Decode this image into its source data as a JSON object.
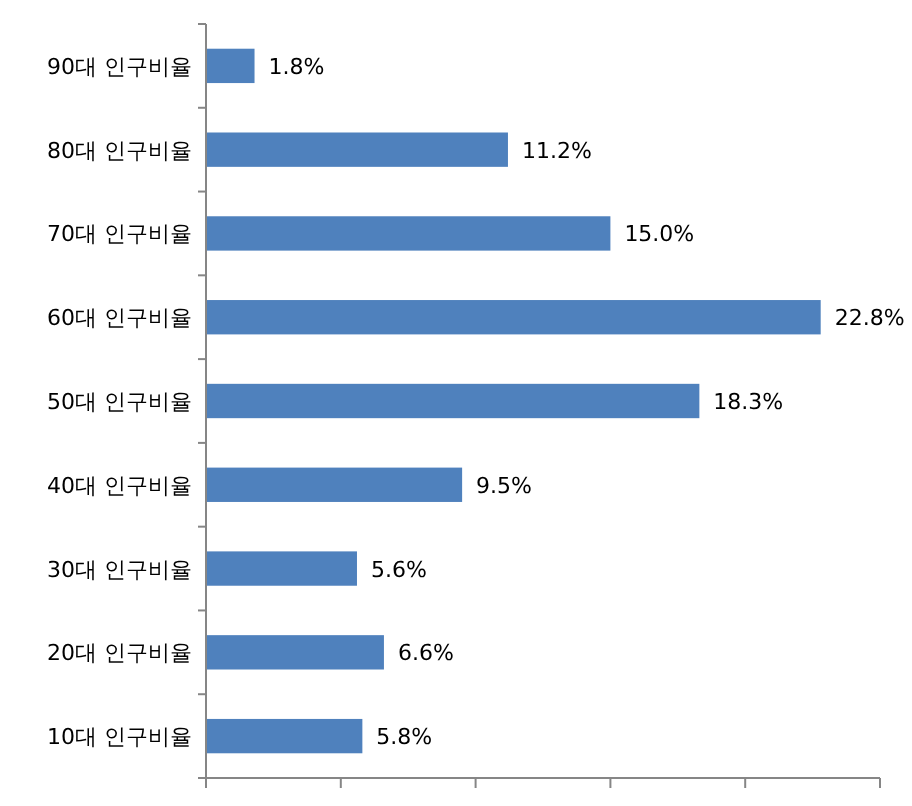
{
  "chart_data": {
    "type": "bar",
    "orientation": "horizontal",
    "categories": [
      "90대 인구비율",
      "80대 인구비율",
      "70대 인구비율",
      "60대 인구비율",
      "50대 인구비율",
      "40대 인구비율",
      "30대 인구비율",
      "20대 인구비율",
      "10대 인구비율"
    ],
    "values": [
      1.8,
      11.2,
      15.0,
      22.8,
      18.3,
      9.5,
      5.6,
      6.6,
      5.8
    ],
    "value_labels": [
      "1.8%",
      "11.2%",
      "15.0%",
      "22.8%",
      "18.3%",
      "9.5%",
      "5.6%",
      "6.6%",
      "5.8%"
    ],
    "color": "#4f81bd",
    "xlim": [
      0,
      25
    ],
    "xticks": [
      {
        "value": 0,
        "label": null
      },
      {
        "value": 5,
        "label": null
      },
      {
        "value": 10,
        "label": null
      },
      {
        "value": 15,
        "label": null
      },
      {
        "value": 20,
        "label": null
      },
      {
        "value": 25,
        "label": null
      }
    ],
    "tick_labels": "y"
  }
}
